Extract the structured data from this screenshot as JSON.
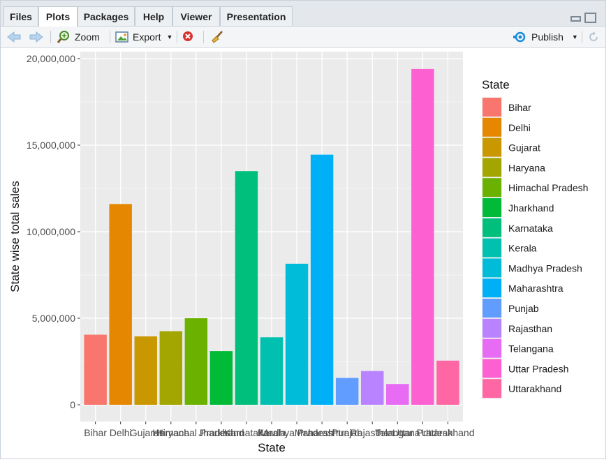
{
  "tabs": [
    {
      "label": "Files"
    },
    {
      "label": "Plots"
    },
    {
      "label": "Packages"
    },
    {
      "label": "Help"
    },
    {
      "label": "Viewer"
    },
    {
      "label": "Presentation"
    }
  ],
  "toolbar": {
    "zoom_label": "Zoom",
    "export_label": "Export",
    "publish_label": "Publish"
  },
  "colors": {
    "panel_bg": "#ebebeb",
    "grid": "#ffffff",
    "publish_accent": "#1a8cdb",
    "remove_red": "#d9302c"
  },
  "chart_data": {
    "type": "bar",
    "xlabel": "State",
    "ylabel": "State wise total sales",
    "legend_title": "State",
    "legend_position": "right",
    "grid": true,
    "ylim": [
      0,
      20000000
    ],
    "y_ticks": [
      "0",
      "5,000,000",
      "10,000,000",
      "15,000,000",
      "20,000,000"
    ],
    "y_tick_values": [
      0,
      5000000,
      10000000,
      15000000,
      20000000
    ],
    "categories": [
      "Bihar",
      "Delhi",
      "Gujarat",
      "Haryana",
      "Himachal Pradesh",
      "Jharkhand",
      "Karnataka",
      "Kerala",
      "Madhya Pradesh",
      "Maharashtra",
      "Punjab",
      "Rajasthan",
      "Telangana",
      "Uttar Pradesh",
      "Uttarakhand"
    ],
    "values": [
      4050000,
      11600000,
      3950000,
      4250000,
      5000000,
      3100000,
      13500000,
      3900000,
      8150000,
      14450000,
      1550000,
      1950000,
      1200000,
      19400000,
      2550000
    ],
    "colors": [
      "#F8766D",
      "#E58700",
      "#C99800",
      "#A3A500",
      "#6BB100",
      "#00BA38",
      "#00BF7D",
      "#00C0AF",
      "#00BCD8",
      "#00B0F6",
      "#619CFF",
      "#B983FF",
      "#E76BF3",
      "#FD61D1",
      "#FF67A4"
    ]
  }
}
